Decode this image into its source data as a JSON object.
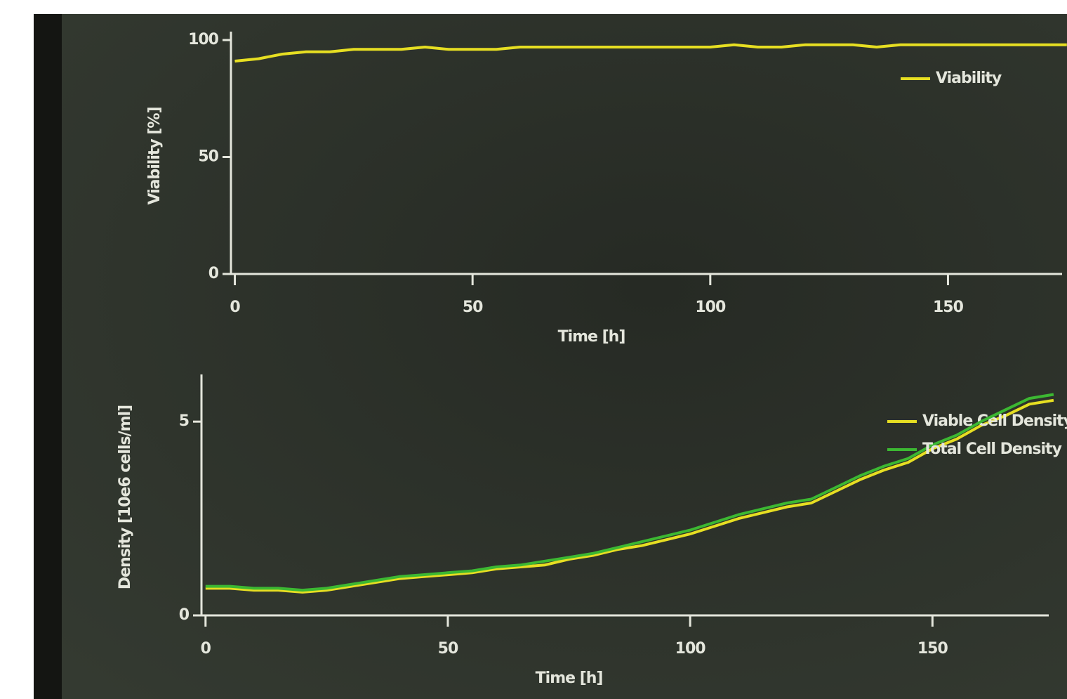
{
  "chart_data": [
    {
      "type": "line",
      "ylabel": "Viability [%]",
      "xlabel": "Time [h]",
      "x": [
        0,
        5,
        10,
        15,
        20,
        25,
        30,
        35,
        40,
        45,
        50,
        55,
        60,
        65,
        70,
        75,
        80,
        85,
        90,
        95,
        100,
        105,
        110,
        115,
        120,
        125,
        130,
        135,
        140,
        145,
        150,
        155,
        160,
        165,
        170,
        175
      ],
      "series": [
        {
          "name": "Viability",
          "color": "#e6de22",
          "values": [
            91,
            92,
            94,
            95,
            95,
            96,
            96,
            96,
            97,
            96,
            96,
            96,
            97,
            97,
            97,
            97,
            97,
            97,
            97,
            97,
            97,
            98,
            97,
            97,
            98,
            98,
            98,
            97,
            98,
            98,
            98,
            98,
            98,
            98,
            98,
            98
          ]
        }
      ],
      "xlim": [
        -2,
        174
      ],
      "ylim": [
        0,
        100
      ],
      "xticks": [
        0,
        50,
        100,
        150
      ],
      "yticks": [
        0,
        50,
        100
      ],
      "legend": "upper right"
    },
    {
      "type": "line",
      "ylabel": "Density [10e6 cells/ml]",
      "xlabel": "Time [h]",
      "x": [
        0,
        5,
        10,
        15,
        20,
        25,
        30,
        35,
        40,
        45,
        50,
        55,
        60,
        65,
        70,
        75,
        80,
        85,
        90,
        95,
        100,
        105,
        110,
        115,
        120,
        125,
        130,
        135,
        140,
        145,
        150,
        155,
        160,
        165,
        170,
        175
      ],
      "series": [
        {
          "name": "Viable Cell Density",
          "color": "#e6de22",
          "values": [
            0.7,
            0.7,
            0.65,
            0.65,
            0.6,
            0.65,
            0.75,
            0.85,
            0.95,
            1.0,
            1.05,
            1.1,
            1.2,
            1.25,
            1.3,
            1.45,
            1.55,
            1.7,
            1.8,
            1.95,
            2.1,
            2.3,
            2.5,
            2.65,
            2.8,
            2.9,
            3.2,
            3.5,
            3.75,
            3.95,
            4.3,
            4.55,
            4.9,
            5.15,
            5.45,
            5.55
          ]
        },
        {
          "name": "Total Cell Density",
          "color": "#3cb832",
          "values": [
            0.75,
            0.75,
            0.7,
            0.7,
            0.65,
            0.7,
            0.8,
            0.9,
            1.0,
            1.05,
            1.1,
            1.15,
            1.25,
            1.3,
            1.4,
            1.5,
            1.6,
            1.75,
            1.9,
            2.05,
            2.2,
            2.4,
            2.6,
            2.75,
            2.9,
            3.0,
            3.3,
            3.6,
            3.85,
            4.05,
            4.4,
            4.65,
            5.0,
            5.3,
            5.6,
            5.7
          ]
        }
      ],
      "xlim": [
        -2,
        174
      ],
      "ylim": [
        0,
        6
      ],
      "xticks": [
        0,
        50,
        100,
        150
      ],
      "yticks": [
        0,
        5
      ],
      "legend": "upper right"
    }
  ]
}
